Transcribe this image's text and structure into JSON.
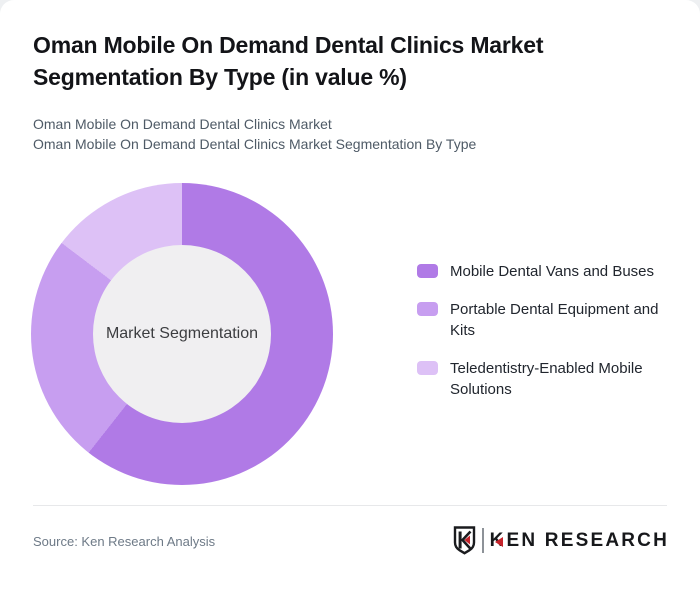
{
  "header": {
    "title": "Oman Mobile On Demand Dental Clinics Market Segmentation By Type (in value %)",
    "subtitle_lines": [
      "Oman Mobile On Demand Dental Clinics Market",
      "Oman Mobile On Demand Dental Clinics Market Segmentation By Type"
    ]
  },
  "chart_data": {
    "type": "pie",
    "donut": true,
    "center_label": "Market Segmentation",
    "categories": [
      "Mobile Dental Vans and Buses",
      "Portable Dental Equipment and Kits",
      "Teledentistry-Enabled Mobile Solutions"
    ],
    "values": [
      60.6,
      24.7,
      14.7
    ],
    "values_are_estimated_from_angles": true,
    "start_angle_deg": 0,
    "colors": [
      "#b07ae6",
      "#c79ef0",
      "#ddc1f6"
    ],
    "inner_hole_color": "#f0eff1",
    "legend_position": "right",
    "data_labels_shown": false
  },
  "footer": {
    "source": "Source: Ken Research Analysis",
    "logo_brand_initial": "K",
    "logo_brand_rest": "EN RESEARCH",
    "logo_accent_color": "#c5232b"
  }
}
